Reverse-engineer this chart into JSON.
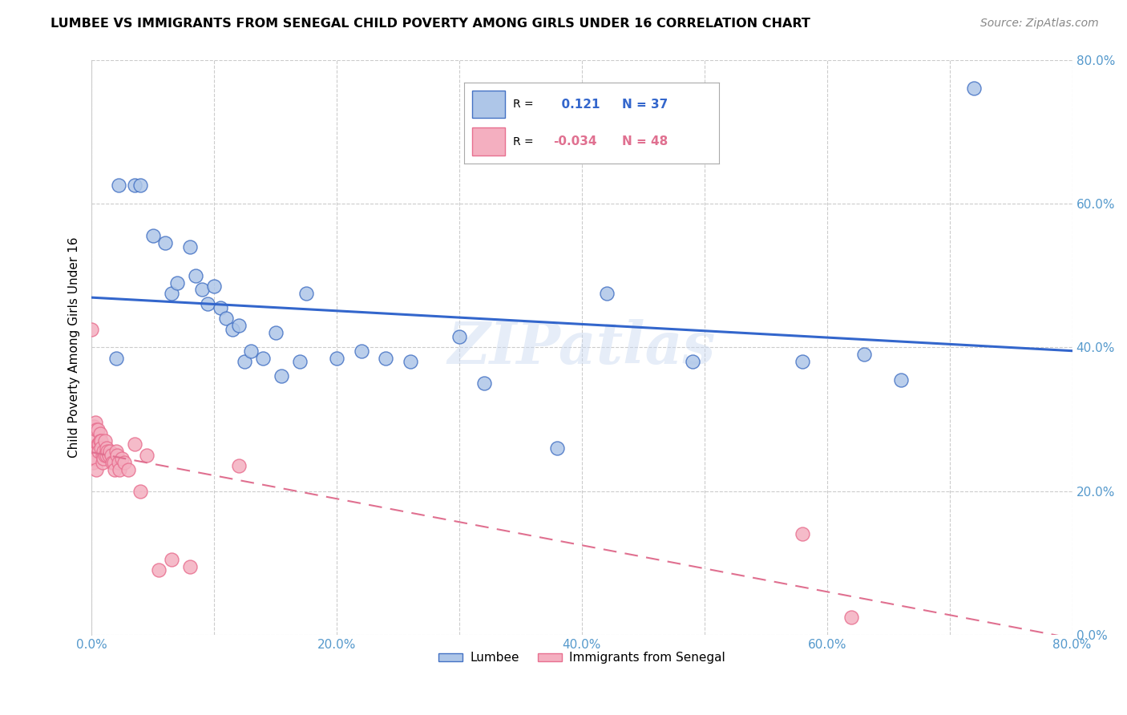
{
  "title": "LUMBEE VS IMMIGRANTS FROM SENEGAL CHILD POVERTY AMONG GIRLS UNDER 16 CORRELATION CHART",
  "source": "Source: ZipAtlas.com",
  "ylabel": "Child Poverty Among Girls Under 16",
  "xlim": [
    0.0,
    0.8
  ],
  "ylim": [
    0.0,
    0.8
  ],
  "xtick_labels": [
    "0.0%",
    "",
    "20.0%",
    "",
    "40.0%",
    "",
    "60.0%",
    "",
    "80.0%"
  ],
  "xtick_values": [
    0.0,
    0.1,
    0.2,
    0.3,
    0.4,
    0.5,
    0.6,
    0.7,
    0.8
  ],
  "ytick_labels": [
    "0.0%",
    "20.0%",
    "40.0%",
    "60.0%",
    "80.0%"
  ],
  "ytick_values": [
    0.0,
    0.2,
    0.4,
    0.6,
    0.8
  ],
  "lumbee_color": "#aec6e8",
  "senegal_color": "#f4afc0",
  "lumbee_edge_color": "#4472c4",
  "senegal_edge_color": "#e87090",
  "lumbee_line_color": "#3366cc",
  "senegal_line_color": "#e07090",
  "tick_color": "#5599cc",
  "R_lumbee": 0.121,
  "N_lumbee": 37,
  "R_senegal": -0.034,
  "N_senegal": 48,
  "watermark": "ZIPatlas",
  "lumbee_x": [
    0.02,
    0.022,
    0.035,
    0.04,
    0.05,
    0.06,
    0.065,
    0.07,
    0.08,
    0.085,
    0.09,
    0.095,
    0.1,
    0.105,
    0.11,
    0.115,
    0.12,
    0.125,
    0.13,
    0.14,
    0.15,
    0.155,
    0.17,
    0.175,
    0.2,
    0.22,
    0.24,
    0.26,
    0.3,
    0.32,
    0.38,
    0.42,
    0.49,
    0.58,
    0.63,
    0.66,
    0.72
  ],
  "lumbee_y": [
    0.385,
    0.625,
    0.625,
    0.625,
    0.555,
    0.545,
    0.475,
    0.49,
    0.54,
    0.5,
    0.48,
    0.46,
    0.485,
    0.455,
    0.44,
    0.425,
    0.43,
    0.38,
    0.395,
    0.385,
    0.42,
    0.36,
    0.38,
    0.475,
    0.385,
    0.395,
    0.385,
    0.38,
    0.415,
    0.35,
    0.26,
    0.475,
    0.38,
    0.38,
    0.39,
    0.355,
    0.76
  ],
  "senegal_x": [
    0.0,
    0.001,
    0.001,
    0.002,
    0.002,
    0.003,
    0.003,
    0.004,
    0.004,
    0.005,
    0.005,
    0.006,
    0.006,
    0.007,
    0.007,
    0.008,
    0.008,
    0.009,
    0.009,
    0.01,
    0.01,
    0.011,
    0.011,
    0.012,
    0.012,
    0.013,
    0.014,
    0.015,
    0.016,
    0.017,
    0.018,
    0.019,
    0.02,
    0.021,
    0.022,
    0.023,
    0.025,
    0.027,
    0.03,
    0.035,
    0.04,
    0.045,
    0.055,
    0.065,
    0.08,
    0.12,
    0.58,
    0.62
  ],
  "senegal_y": [
    0.425,
    0.255,
    0.24,
    0.29,
    0.27,
    0.295,
    0.245,
    0.285,
    0.23,
    0.285,
    0.265,
    0.265,
    0.255,
    0.28,
    0.27,
    0.27,
    0.26,
    0.25,
    0.24,
    0.255,
    0.245,
    0.27,
    0.25,
    0.26,
    0.25,
    0.255,
    0.25,
    0.255,
    0.25,
    0.24,
    0.24,
    0.23,
    0.255,
    0.25,
    0.24,
    0.23,
    0.245,
    0.24,
    0.23,
    0.265,
    0.2,
    0.25,
    0.09,
    0.105,
    0.095,
    0.235,
    0.14,
    0.025
  ]
}
